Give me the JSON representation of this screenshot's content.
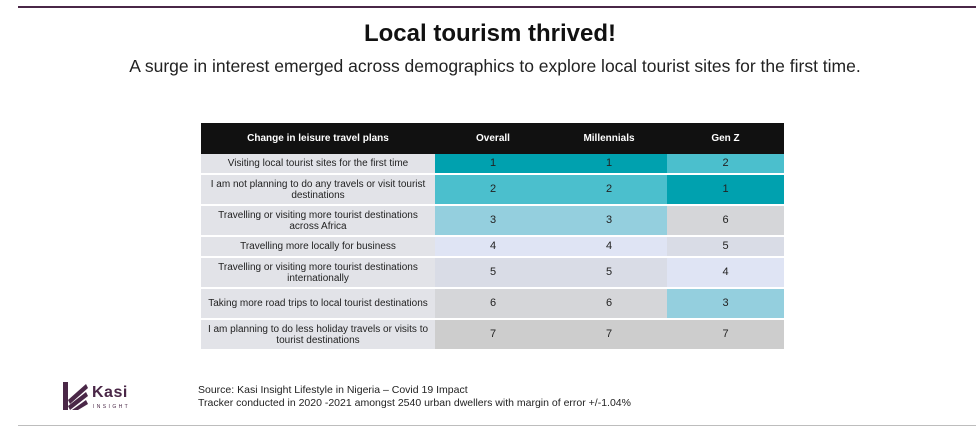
{
  "title": "Local tourism thrived!",
  "subtitle": "A surge in interest emerged across demographics to explore local tourist sites for the first time.",
  "table": {
    "headers": [
      "Change in leisure travel plans",
      "Overall",
      "Millennials",
      "Gen Z"
    ],
    "rows": [
      {
        "label": "Visiting local tourist sites for the first time",
        "overall": "1",
        "millennials": "1",
        "genz": "2"
      },
      {
        "label": "I am not planning to do any travels or visit tourist destinations",
        "overall": "2",
        "millennials": "2",
        "genz": "1"
      },
      {
        "label": "Travelling or visiting more tourist destinations across Africa",
        "overall": "3",
        "millennials": "3",
        "genz": "6"
      },
      {
        "label": "Travelling more locally for business",
        "overall": "4",
        "millennials": "4",
        "genz": "5"
      },
      {
        "label": "Travelling or visiting more tourist destinations internationally",
        "overall": "5",
        "millennials": "5",
        "genz": "4"
      },
      {
        "label": "Taking more road trips to local tourist destinations",
        "overall": "6",
        "millennials": "6",
        "genz": "3"
      },
      {
        "label": "I am planning to do less holiday travels or visits to tourist destinations",
        "overall": "7",
        "millennials": "7",
        "genz": "7"
      }
    ],
    "rank_colors": {
      "1": "#00a1af",
      "2": "#4bbfcd",
      "3": "#94cfde",
      "4": "#dfe4f4",
      "5": "#d9dce6",
      "6": "#d5d6d9",
      "7": "#cdcdcd"
    }
  },
  "logo": {
    "name": "Kasi",
    "tagline": "INSIGHT",
    "icon": "kasi-logo-icon",
    "color": "#4a2747"
  },
  "source": {
    "line1": "Source: Kasi Insight Lifestyle in Nigeria – Covid 19 Impact",
    "line2": "Tracker conducted  in 2020 -2021 amongst 2540 urban dwellers with margin of error +/-1.04%"
  }
}
